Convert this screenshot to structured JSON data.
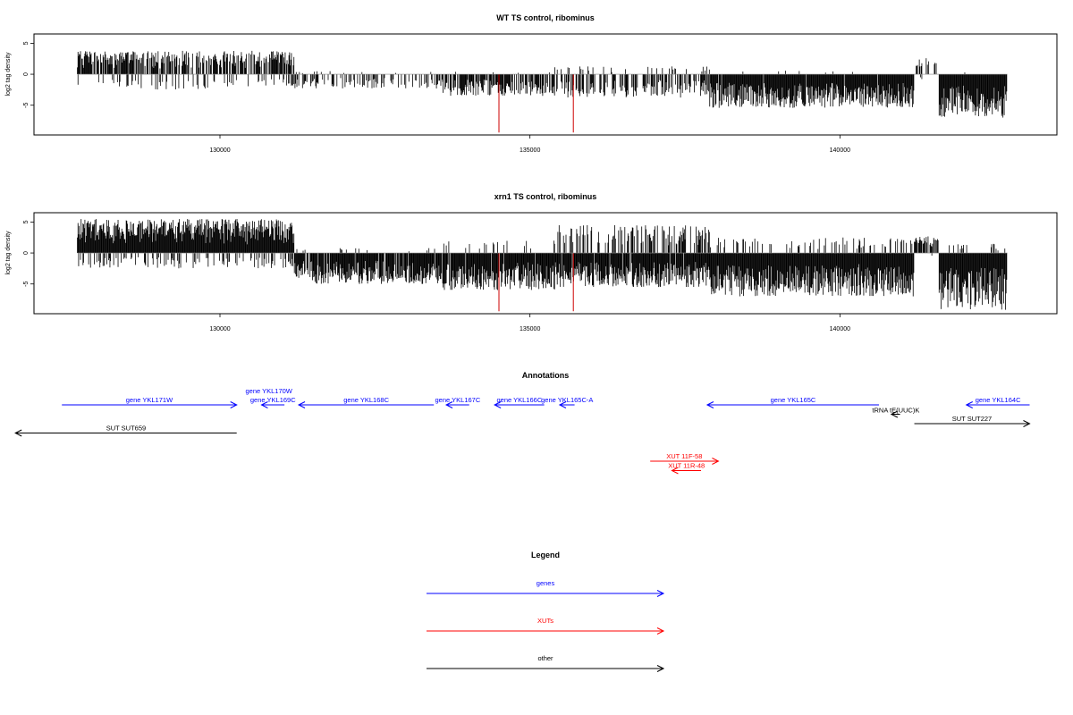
{
  "chart_data": [
    {
      "type": "bar",
      "title": "WT TS control, ribominus",
      "xlabel": "",
      "ylabel": "log2 tag density",
      "xlim": [
        127000,
        143500
      ],
      "ylim": [
        -9.8,
        6.5
      ],
      "xticks": [
        130000,
        135000,
        140000
      ],
      "xtick_labels": [
        "130000",
        "135000",
        "140000"
      ],
      "yticks": [
        5,
        0,
        -5
      ],
      "ytick_labels": [
        "5",
        "0",
        "-5"
      ],
      "baseline": {
        "from": 127700,
        "to": 142700
      },
      "segments": [
        {
          "from": 127700,
          "to": 131200,
          "pos": 3.8,
          "neg": 2.5,
          "pp": 0.75,
          "pn": 0.2
        },
        {
          "from": 131200,
          "to": 133600,
          "pos": 0.5,
          "neg": 2.3,
          "pp": 0.05,
          "pn": 0.35
        },
        {
          "from": 133600,
          "to": 135400,
          "pos": 0.4,
          "neg": 3.5,
          "pp": 0.03,
          "pn": 0.7
        },
        {
          "from": 135400,
          "to": 137900,
          "pos": 1.3,
          "neg": 3.8,
          "pp": 0.1,
          "pn": 0.5
        },
        {
          "from": 137900,
          "to": 141200,
          "pos": 0.6,
          "neg": 5.5,
          "pp": 0.03,
          "pn": 0.97
        },
        {
          "from": 141200,
          "to": 141600,
          "pos": 2.8,
          "neg": 1.0,
          "pp": 0.35,
          "pn": 0.1
        },
        {
          "from": 141600,
          "to": 142700,
          "pos": 0.4,
          "neg": 7.0,
          "pp": 0.02,
          "pn": 1.0
        }
      ],
      "markers": [
        {
          "x": 134500,
          "y": -9.4,
          "color": "#cc0000"
        },
        {
          "x": 135700,
          "y": -9.4,
          "color": "#cc0000"
        }
      ]
    },
    {
      "type": "bar",
      "title": "xrn1 TS control, ribominus",
      "xlabel": "",
      "ylabel": "log2 tag density",
      "xlim": [
        127000,
        143500
      ],
      "ylim": [
        -9.8,
        6.5
      ],
      "xticks": [
        130000,
        135000,
        140000
      ],
      "xtick_labels": [
        "130000",
        "135000",
        "140000"
      ],
      "yticks": [
        5,
        0,
        -5
      ],
      "ytick_labels": [
        "5",
        "0",
        "-5"
      ],
      "baseline": {
        "from": 127700,
        "to": 142700
      },
      "segments": [
        {
          "from": 127700,
          "to": 131200,
          "pos": 5.5,
          "neg": 2.5,
          "pp": 1.0,
          "pn": 0.3
        },
        {
          "from": 131200,
          "to": 133600,
          "pos": 0.8,
          "neg": 5.0,
          "pp": 0.05,
          "pn": 0.9
        },
        {
          "from": 133600,
          "to": 135400,
          "pos": 2.0,
          "neg": 6.0,
          "pp": 0.1,
          "pn": 0.97
        },
        {
          "from": 135400,
          "to": 137900,
          "pos": 4.5,
          "neg": 5.5,
          "pp": 0.45,
          "pn": 0.95
        },
        {
          "from": 137900,
          "to": 141200,
          "pos": 2.5,
          "neg": 7.0,
          "pp": 0.2,
          "pn": 1.0
        },
        {
          "from": 141200,
          "to": 141600,
          "pos": 2.8,
          "neg": 1.2,
          "pp": 0.8,
          "pn": 0.2
        },
        {
          "from": 141600,
          "to": 142700,
          "pos": 1.5,
          "neg": 9.2,
          "pp": 0.1,
          "pn": 1.0
        }
      ],
      "markers": [
        {
          "x": 134500,
          "y": -9.4,
          "color": "#cc0000"
        },
        {
          "x": 135700,
          "y": -9.4,
          "color": "#cc0000"
        }
      ]
    }
  ],
  "annotations": {
    "title": "Annotations",
    "xlim": [
      127000,
      143500
    ],
    "features": [
      {
        "label": "gene YKL171W",
        "start": 127450,
        "end": 130270,
        "lane": 0,
        "dir": "+",
        "type": "gene"
      },
      {
        "label": "gene YKL170W",
        "start": 130470,
        "end": 131080,
        "lane": -1,
        "dir": "+",
        "type": "gene"
      },
      {
        "label": "gene YKL169C",
        "start": 130670,
        "end": 131040,
        "lane": 0,
        "dir": "-",
        "type": "gene"
      },
      {
        "label": "gene YKL168C",
        "start": 131270,
        "end": 133450,
        "lane": 0,
        "dir": "-",
        "type": "gene"
      },
      {
        "label": "gene YKL167C",
        "start": 133650,
        "end": 134020,
        "lane": 0,
        "dir": "-",
        "type": "gene"
      },
      {
        "label": "gene YKL166C",
        "start": 134430,
        "end": 135230,
        "lane": 0,
        "dir": "-",
        "type": "gene"
      },
      {
        "label": "gene YKL165C-A",
        "start": 135480,
        "end": 135720,
        "lane": 0,
        "dir": "-",
        "type": "gene"
      },
      {
        "label": "gene YKL165C",
        "start": 137860,
        "end": 140630,
        "lane": 0,
        "dir": "-",
        "type": "gene"
      },
      {
        "label": "gene YKL164C",
        "start": 142040,
        "end": 143060,
        "lane": 0,
        "dir": "-",
        "type": "gene"
      },
      {
        "label": "tRNA tE(UUC)K",
        "start": 140830,
        "end": 140970,
        "lane": 1,
        "dir": "-",
        "type": "other"
      },
      {
        "label": "SUT SUT227",
        "start": 141200,
        "end": 143060,
        "lane": 2,
        "dir": "+",
        "type": "other"
      },
      {
        "label": "SUT SUT659",
        "start": 126700,
        "end": 130270,
        "lane": 3,
        "dir": "-",
        "type": "other"
      },
      {
        "label": "XUT 11F-58",
        "start": 136940,
        "end": 138040,
        "lane": 6,
        "dir": "+",
        "type": "xut"
      },
      {
        "label": "XUT 11R-48",
        "start": 137290,
        "end": 137760,
        "lane": 7,
        "dir": "-",
        "type": "xut"
      }
    ]
  },
  "legend": {
    "title": "Legend",
    "items": [
      {
        "label": "genes",
        "color": "#0000ff"
      },
      {
        "label": "XUTs",
        "color": "#ff0000"
      },
      {
        "label": "other",
        "color": "#000000"
      }
    ]
  },
  "colors": {
    "gene": "#0000ff",
    "xut": "#ff0000",
    "other": "#000000",
    "marker": "#cc0000"
  }
}
